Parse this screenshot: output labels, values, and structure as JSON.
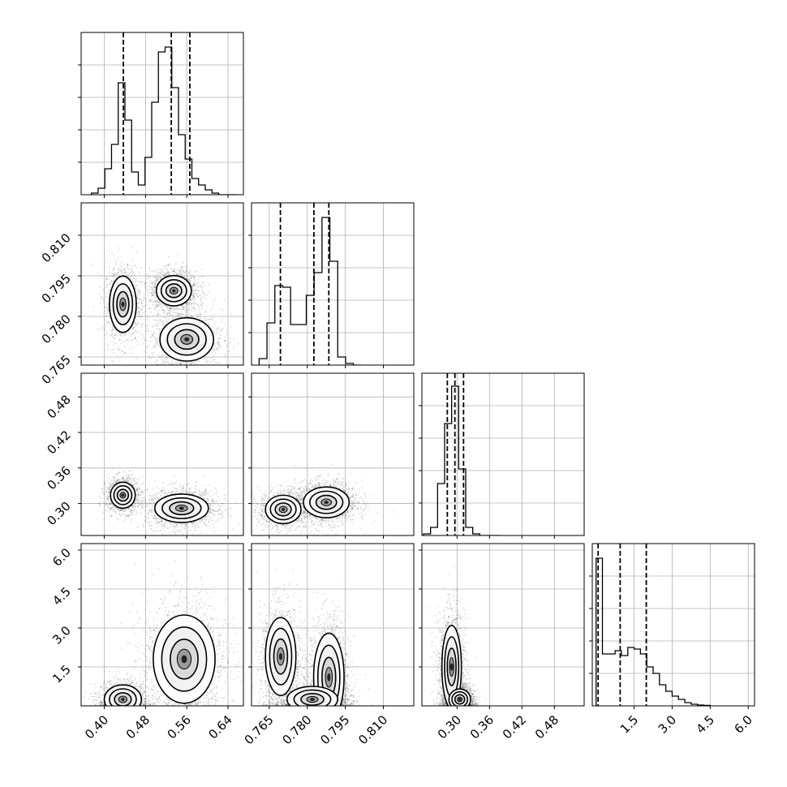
{
  "chart_data": {
    "type": "corner",
    "grid": true,
    "panels": [
      {
        "id": "p00",
        "row": 0,
        "col": 0,
        "kind": "histogram",
        "xlim": [
          0.355,
          0.67
        ],
        "x_ticks": [
          0.4,
          0.48,
          0.56,
          0.64
        ],
        "bins_x": [
          0.375,
          0.388,
          0.401,
          0.414,
          0.427,
          0.44,
          0.453,
          0.466,
          0.479,
          0.492,
          0.505,
          0.518,
          0.531,
          0.544,
          0.557,
          0.57,
          0.583,
          0.596,
          0.609,
          0.622,
          0.635,
          0.648,
          0.661
        ],
        "heights": [
          0.01,
          0.04,
          0.16,
          0.31,
          0.69,
          0.46,
          0.14,
          0.06,
          0.23,
          0.57,
          0.88,
          0.91,
          0.66,
          0.37,
          0.22,
          0.1,
          0.06,
          0.03,
          0.01,
          0.0,
          0.0,
          0.0
        ],
        "quantile_lines": [
          0.437,
          0.53,
          0.566
        ]
      },
      {
        "id": "p10",
        "row": 1,
        "col": 0,
        "kind": "density2d",
        "xlim": [
          0.355,
          0.67
        ],
        "ylim": [
          0.762,
          0.822
        ],
        "y_ticks": [
          "0.810",
          "0.795",
          "0.780",
          "0.765"
        ],
        "y_tick_values": [
          0.81,
          0.795,
          0.78,
          0.765
        ],
        "clusters": [
          {
            "x": 0.436,
            "y": 0.7845,
            "sx": 0.013,
            "sy": 0.0052,
            "rel": 0.7
          },
          {
            "x": 0.535,
            "y": 0.7895,
            "sx": 0.017,
            "sy": 0.0028,
            "rel": 1.0
          },
          {
            "x": 0.56,
            "y": 0.7715,
            "sx": 0.026,
            "sy": 0.004,
            "rel": 0.75
          }
        ]
      },
      {
        "id": "p11",
        "row": 1,
        "col": 1,
        "kind": "histogram",
        "xlim": [
          0.758,
          0.822
        ],
        "x_ticks": [
          0.765,
          0.78,
          0.795,
          0.81
        ],
        "bins_x": [
          0.761,
          0.7641,
          0.7672,
          0.7703,
          0.7734,
          0.7765,
          0.7796,
          0.7827,
          0.7858,
          0.7889,
          0.792,
          0.7951,
          0.7982,
          0.8013
        ],
        "heights": [
          0.04,
          0.26,
          0.49,
          0.48,
          0.25,
          0.25,
          0.43,
          0.57,
          0.91,
          0.64,
          0.05,
          0.01,
          0.0
        ],
        "quantile_lines": [
          0.7694,
          0.7826,
          0.7885
        ]
      },
      {
        "id": "p20",
        "row": 2,
        "col": 0,
        "kind": "density2d",
        "xlim": [
          0.355,
          0.67
        ],
        "ylim": [
          0.246,
          0.52
        ],
        "y_ticks": [
          "0.48",
          "0.42",
          "0.36",
          "0.30"
        ],
        "y_tick_values": [
          0.48,
          0.42,
          0.36,
          0.3
        ],
        "clusters": [
          {
            "x": 0.436,
            "y": 0.314,
            "sx": 0.012,
            "sy": 0.011,
            "rel": 0.75
          },
          {
            "x": 0.55,
            "y": 0.292,
            "sx": 0.026,
            "sy": 0.012,
            "rel": 1.0
          }
        ]
      },
      {
        "id": "p21",
        "row": 2,
        "col": 1,
        "kind": "density2d",
        "xlim": [
          0.758,
          0.822
        ],
        "ylim": [
          0.246,
          0.52
        ],
        "clusters": [
          {
            "x": 0.7705,
            "y": 0.29,
            "sx": 0.0035,
            "sy": 0.012,
            "rel": 0.7
          },
          {
            "x": 0.7875,
            "y": 0.302,
            "sx": 0.0045,
            "sy": 0.013,
            "rel": 1.0
          }
        ]
      },
      {
        "id": "p22",
        "row": 2,
        "col": 2,
        "kind": "histogram",
        "xlim": [
          0.235,
          0.535
        ],
        "x_ticks": [
          0.3,
          0.36,
          0.42,
          0.48
        ],
        "bins_x": [
          0.238,
          0.251,
          0.264,
          0.277,
          0.29,
          0.303,
          0.316,
          0.329,
          0.342,
          0.355,
          0.368,
          0.381
        ],
        "heights": [
          0.01,
          0.05,
          0.32,
          0.69,
          0.92,
          0.41,
          0.05,
          0.01,
          0.0,
          0.0,
          0.0
        ],
        "quantile_lines": [
          0.282,
          0.296,
          0.312
        ]
      },
      {
        "id": "p30",
        "row": 3,
        "col": 0,
        "kind": "density2d",
        "xlim": [
          0.355,
          0.67
        ],
        "ylim": [
          0.0,
          6.25
        ],
        "y_ticks": [
          "6.0",
          "4.5",
          "3.0",
          "1.5"
        ],
        "y_tick_values": [
          6.0,
          4.5,
          3.0,
          1.5
        ],
        "clusters": [
          {
            "x": 0.436,
            "y": 0.25,
            "sx": 0.018,
            "sy": 0.28,
            "rel": 0.7
          },
          {
            "x": 0.555,
            "y": 1.8,
            "sx": 0.03,
            "sy": 0.85,
            "rel": 1.0
          }
        ]
      },
      {
        "id": "p31",
        "row": 3,
        "col": 1,
        "kind": "density2d",
        "xlim": [
          0.758,
          0.822
        ],
        "ylim": [
          0.0,
          6.25
        ],
        "clusters": [
          {
            "x": 0.7695,
            "y": 1.9,
            "sx": 0.003,
            "sy": 0.75,
            "rel": 0.8
          },
          {
            "x": 0.7885,
            "y": 1.1,
            "sx": 0.003,
            "sy": 0.85,
            "rel": 1.0
          },
          {
            "x": 0.782,
            "y": 0.25,
            "sx": 0.005,
            "sy": 0.25,
            "rel": 0.8
          }
        ]
      },
      {
        "id": "p32",
        "row": 3,
        "col": 2,
        "kind": "density2d",
        "xlim": [
          0.235,
          0.535
        ],
        "ylim": [
          0.0,
          6.25
        ],
        "x_ticks": [
          0.3,
          0.36,
          0.42,
          0.48
        ],
        "clusters": [
          {
            "x": 0.29,
            "y": 1.5,
            "sx": 0.009,
            "sy": 0.8,
            "rel": 1.0
          },
          {
            "x": 0.305,
            "y": 0.25,
            "sx": 0.01,
            "sy": 0.2,
            "rel": 0.9
          }
        ]
      },
      {
        "id": "p33",
        "row": 3,
        "col": 3,
        "kind": "histogram",
        "xlim": [
          -0.15,
          6.25
        ],
        "x_ticks": [
          1.5,
          3.0,
          4.5,
          6.0
        ],
        "bins_x": [
          0.0,
          0.25,
          0.5,
          0.75,
          1.0,
          1.25,
          1.5,
          1.75,
          2.0,
          2.25,
          2.5,
          2.75,
          3.0,
          3.25,
          3.5,
          3.75,
          4.0,
          4.25,
          4.5
        ],
        "heights": [
          0.91,
          0.32,
          0.32,
          0.34,
          0.31,
          0.36,
          0.35,
          0.32,
          0.24,
          0.2,
          0.13,
          0.09,
          0.06,
          0.04,
          0.02,
          0.01,
          0.005,
          0.003
        ],
        "quantile_lines": [
          0.08,
          0.95,
          1.98
        ]
      }
    ]
  }
}
